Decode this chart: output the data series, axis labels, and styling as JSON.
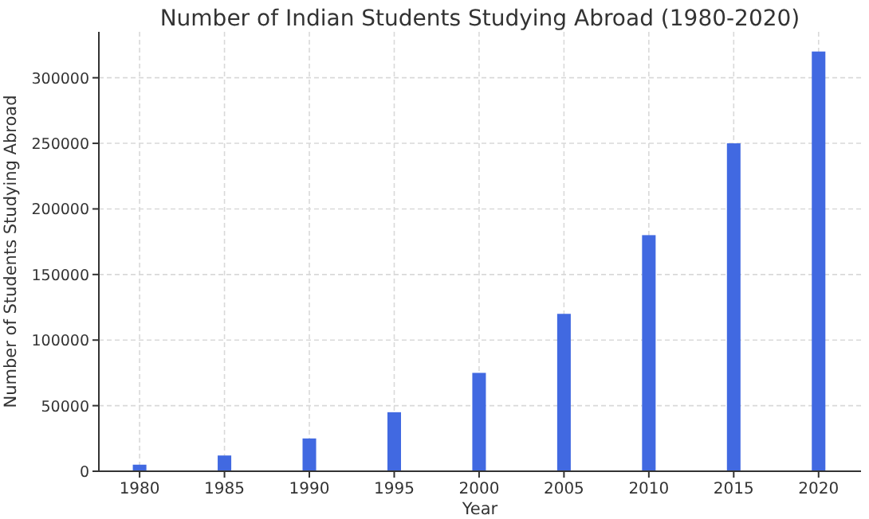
{
  "chart_data": {
    "type": "bar",
    "title": "Number of Indian Students Studying Abroad (1980-2020)",
    "xlabel": "Year",
    "ylabel": "Number of Students Studying Abroad",
    "x": [
      1980,
      1985,
      1990,
      1995,
      2000,
      2005,
      2010,
      2015,
      2020
    ],
    "values": [
      5000,
      12000,
      25000,
      45000,
      75000,
      120000,
      180000,
      250000,
      320000
    ],
    "color": "#4169e1",
    "xlim": [
      1977.6,
      2022.5
    ],
    "xticks": [
      1980,
      1985,
      1990,
      1995,
      2000,
      2005,
      2010,
      2015,
      2020
    ],
    "ylim": [
      0,
      335000
    ],
    "yticks": [
      0,
      50000,
      100000,
      150000,
      200000,
      250000,
      300000
    ],
    "grid": true
  }
}
